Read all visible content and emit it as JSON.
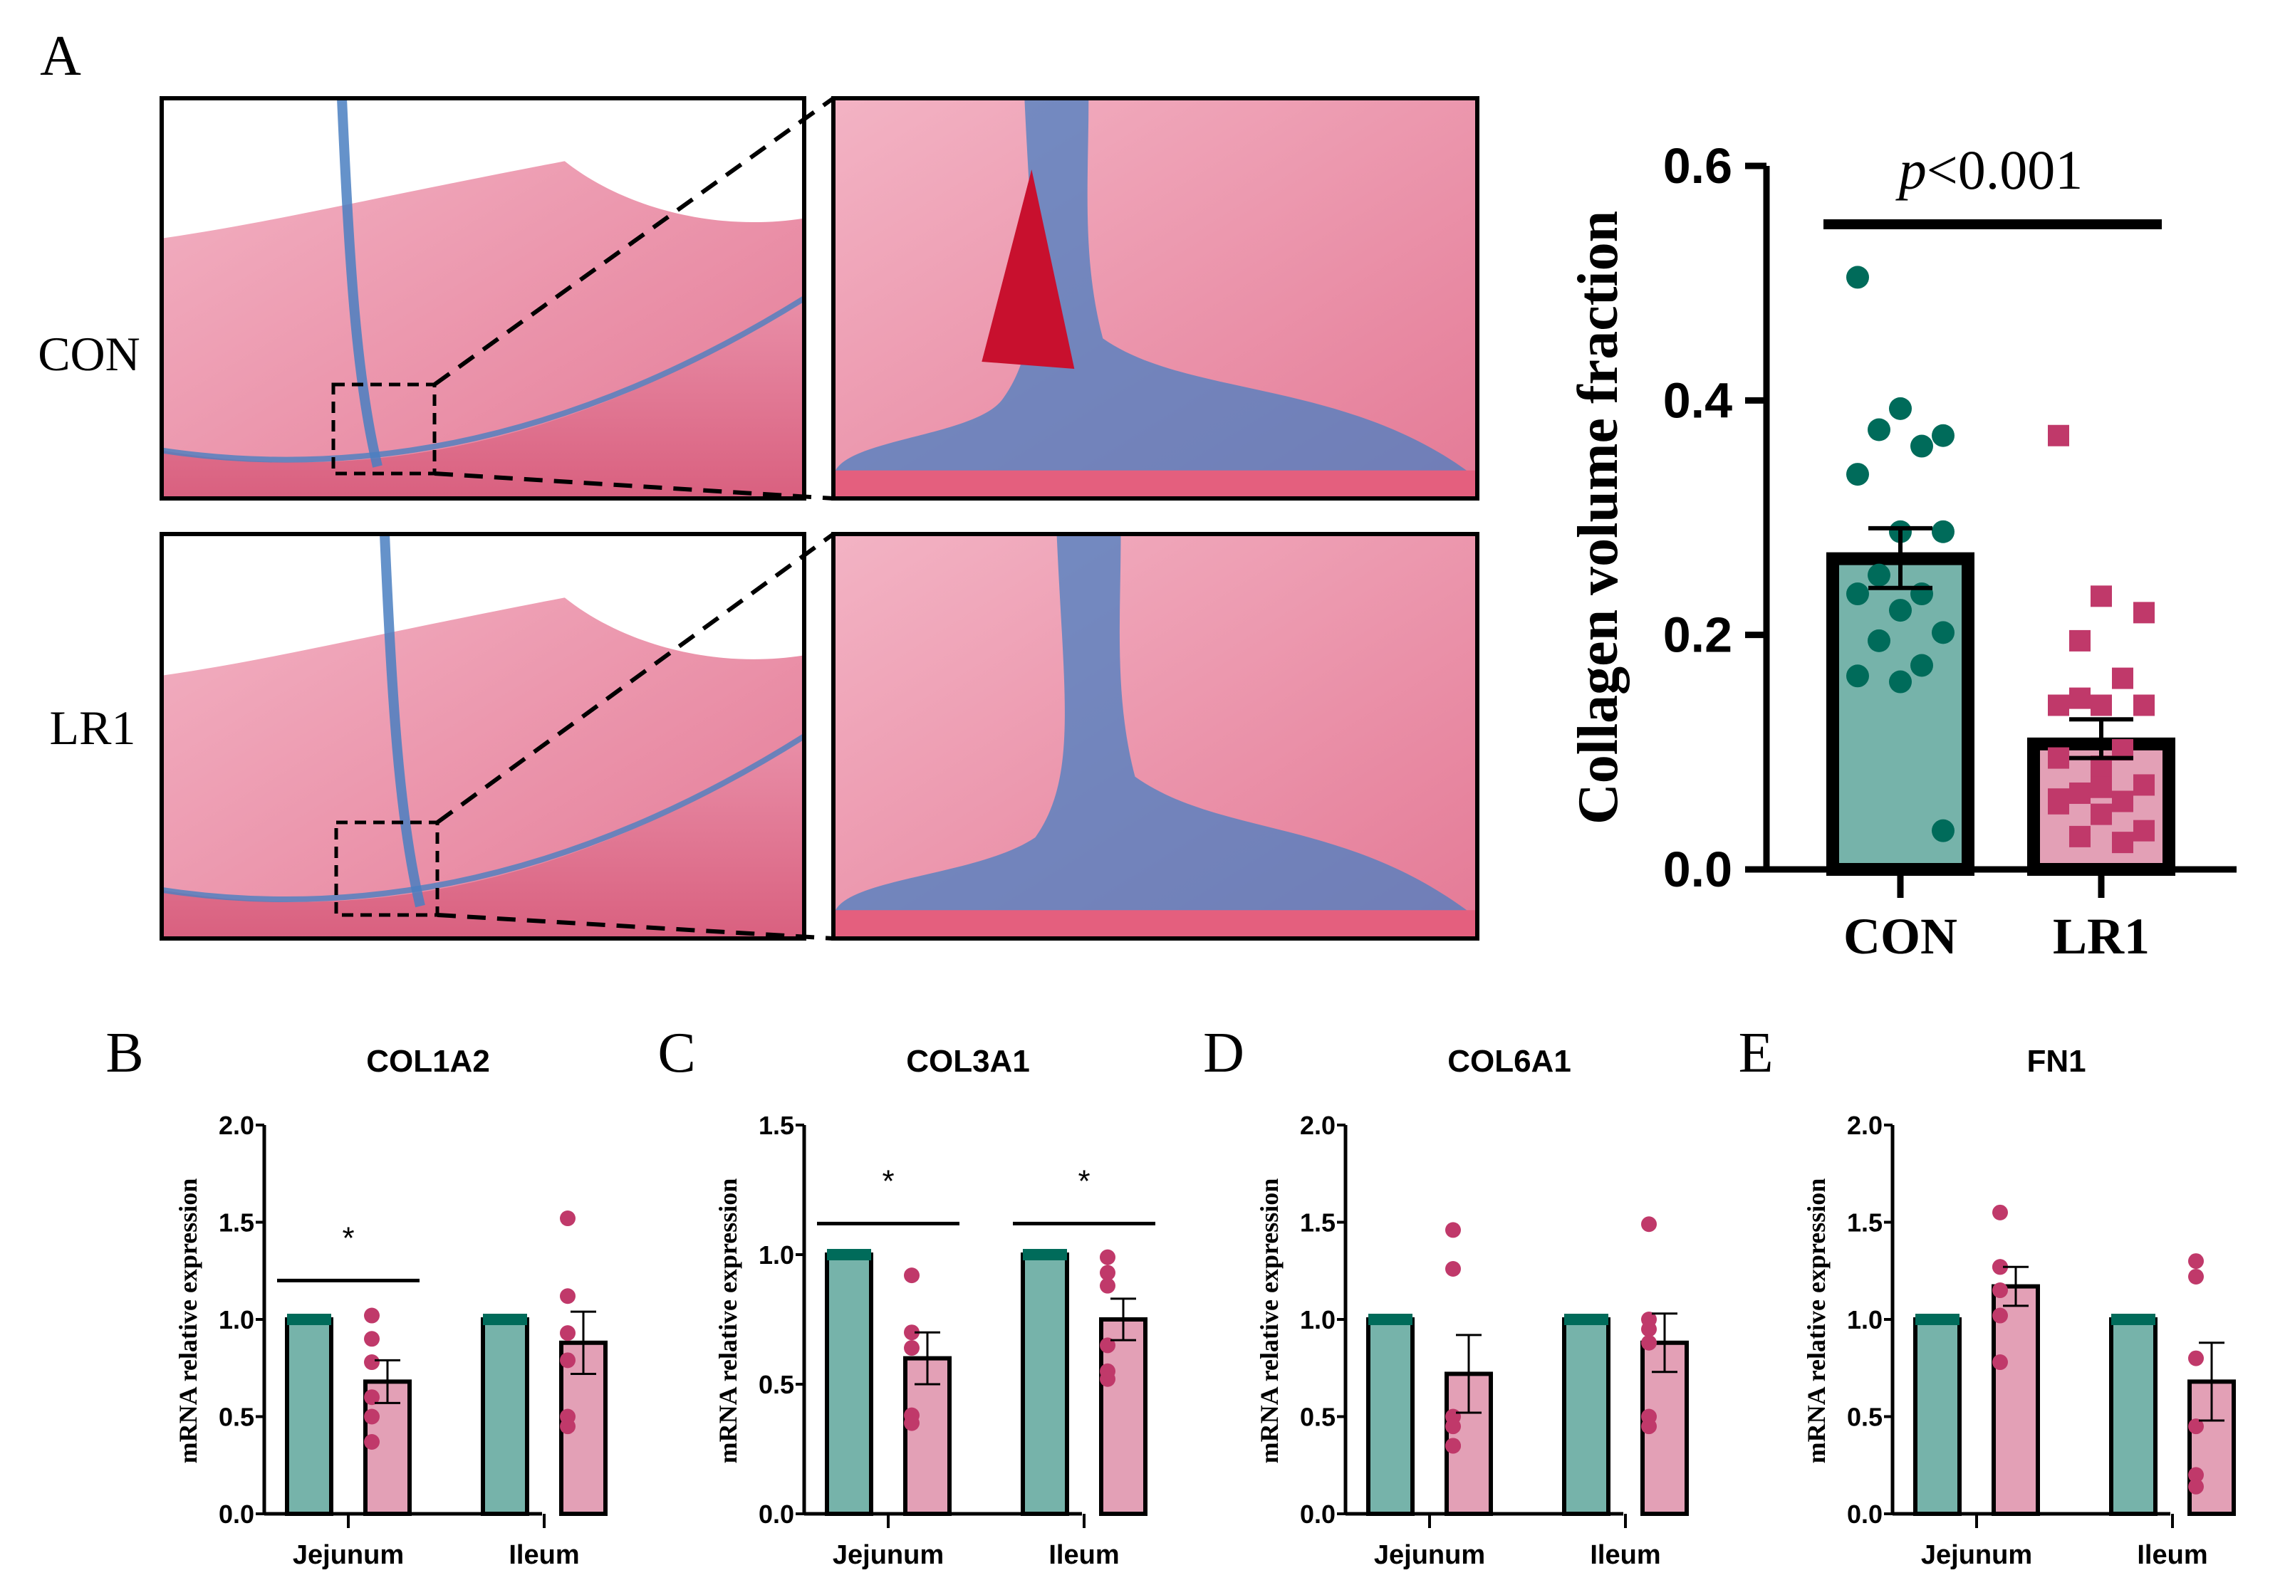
{
  "panels": {
    "A": "A",
    "B": "B",
    "C": "C",
    "D": "D",
    "E": "E"
  },
  "micrographs": {
    "row_labels": [
      "CON",
      "LR1"
    ]
  },
  "colors": {
    "con_bar": "#76b3aa",
    "con_point": "#006b5a",
    "lr1_bar": "#e3a0b6",
    "lr1_point": "#c0396a",
    "tissue": "#e8879f",
    "collagen": "#4a7fc1"
  },
  "chart_data": [
    {
      "type": "bar",
      "panel": "A",
      "ylabel": "Collagen volume fraction",
      "categories": [
        "CON",
        "LR1"
      ],
      "ylim": [
        0,
        0.6
      ],
      "yticks": [
        "0.0",
        "0.2",
        "0.4",
        "0.6"
      ],
      "annotation": {
        "italic": "p",
        "text": "<0.001"
      },
      "series": [
        {
          "name": "CON",
          "mean": 0.265,
          "sem_low": 0.24,
          "sem_high": 0.291,
          "points": [
            0.505,
            0.393,
            0.37,
            0.375,
            0.361,
            0.337,
            0.288,
            0.288,
            0.251,
            0.235,
            0.235,
            0.221,
            0.202,
            0.195,
            0.174,
            0.165,
            0.16,
            0.033
          ]
        },
        {
          "name": "LR1",
          "mean": 0.107,
          "sem_low": 0.095,
          "sem_high": 0.128,
          "points": [
            0.37,
            0.233,
            0.219,
            0.195,
            0.163,
            0.14,
            0.14,
            0.14,
            0.146,
            0.102,
            0.095,
            0.088,
            0.072,
            0.065,
            0.058,
            0.056,
            0.047,
            0.033,
            0.028,
            0.023,
            0.06,
            0.07
          ]
        }
      ]
    },
    {
      "type": "bar",
      "panel": "B",
      "title": "COL1A2",
      "ylabel": "mRNA relative expression",
      "categories": [
        "Jejunum",
        "Ileum"
      ],
      "ylim": [
        0,
        2.0
      ],
      "yticks": [
        "0.0",
        "0.5",
        "1.0",
        "1.5",
        "2.0"
      ],
      "groups": [
        {
          "con": 1.0,
          "lr1": 0.68,
          "sem": 0.11,
          "points": [
            1.02,
            0.9,
            0.78,
            0.6,
            0.5,
            0.37
          ],
          "sig": "*",
          "sig_y": 1.2
        },
        {
          "con": 1.0,
          "lr1": 0.88,
          "sem": 0.16,
          "points": [
            1.52,
            1.12,
            0.93,
            0.79,
            0.5,
            0.45
          ]
        }
      ]
    },
    {
      "type": "bar",
      "panel": "C",
      "title": "COL3A1",
      "ylabel": "mRNA relative expression",
      "categories": [
        "Jejunum",
        "Ileum"
      ],
      "ylim": [
        0,
        1.5
      ],
      "yticks": [
        "0.0",
        "0.5",
        "1.0",
        "1.5"
      ],
      "groups": [
        {
          "con": 1.0,
          "lr1": 0.6,
          "sem": 0.1,
          "points": [
            0.92,
            0.7,
            0.64,
            0.38,
            0.35
          ],
          "sig": "*",
          "sig_y": 1.12
        },
        {
          "con": 1.0,
          "lr1": 0.75,
          "sem": 0.08,
          "points": [
            0.99,
            0.93,
            0.88,
            0.65,
            0.55,
            0.52
          ],
          "sig": "*",
          "sig_y": 1.12
        }
      ]
    },
    {
      "type": "bar",
      "panel": "D",
      "title": "COL6A1",
      "ylabel": "mRNA relative expression",
      "categories": [
        "Jejunum",
        "Ileum"
      ],
      "ylim": [
        0,
        2.0
      ],
      "yticks": [
        "0.0",
        "0.5",
        "1.0",
        "1.5",
        "2.0"
      ],
      "groups": [
        {
          "con": 1.0,
          "lr1": 0.72,
          "sem": 0.2,
          "points": [
            1.46,
            1.26,
            0.5,
            0.45,
            0.35,
            0.35
          ]
        },
        {
          "con": 1.0,
          "lr1": 0.88,
          "sem": 0.15,
          "points": [
            1.49,
            1.0,
            0.95,
            0.88,
            0.5,
            0.45
          ]
        }
      ]
    },
    {
      "type": "bar",
      "panel": "E",
      "title": "FN1",
      "ylabel": "mRNA relative expression",
      "categories": [
        "Jejunum",
        "Ileum"
      ],
      "ylim": [
        0,
        2.0
      ],
      "yticks": [
        "0.0",
        "0.5",
        "1.0",
        "1.5",
        "2.0"
      ],
      "groups": [
        {
          "con": 1.0,
          "lr1": 1.17,
          "sem": 0.1,
          "points": [
            1.55,
            1.27,
            1.27,
            1.15,
            1.02,
            0.78
          ]
        },
        {
          "con": 1.0,
          "lr1": 0.68,
          "sem": 0.2,
          "points": [
            1.3,
            1.22,
            0.8,
            0.45,
            0.2,
            0.14
          ]
        }
      ]
    }
  ]
}
